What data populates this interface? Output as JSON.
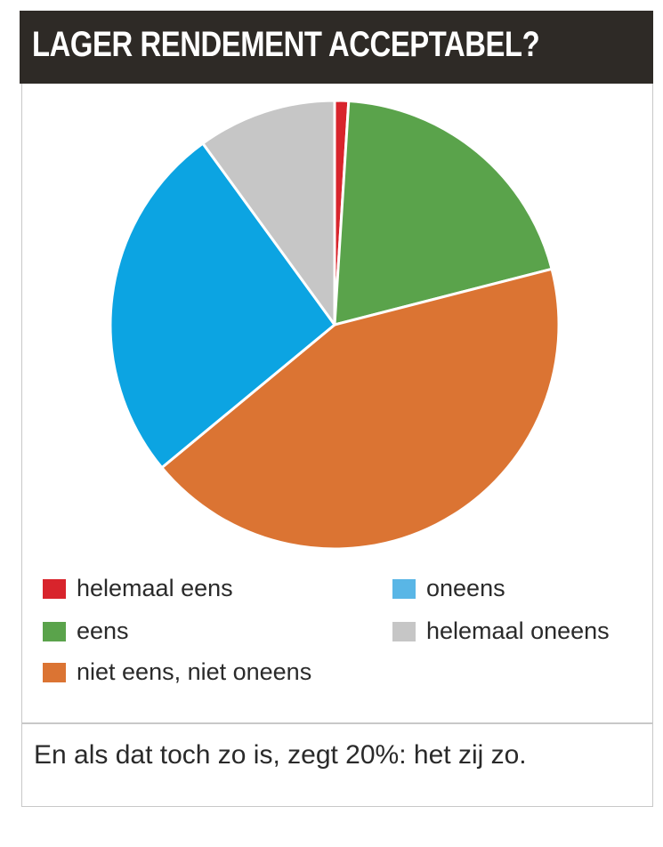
{
  "header": {
    "title": "LAGER RENDEMENT ACCEPTABEL?"
  },
  "chart_data": {
    "type": "pie",
    "title": "LAGER RENDEMENT ACCEPTABEL?",
    "start": "top",
    "direction": "clockwise",
    "slices": [
      {
        "label": "helemaal eens",
        "value": 1,
        "color": "#d8242c"
      },
      {
        "label": "eens",
        "value": 20,
        "color": "#5aa34b"
      },
      {
        "label": "niet eens, niet oneens",
        "value": 43,
        "color": "#db7433"
      },
      {
        "label": "oneens",
        "value": 26,
        "color": "#0ca4e2"
      },
      {
        "label": "helemaal oneens",
        "value": 10,
        "color": "#c6c6c6"
      }
    ]
  },
  "legend": {
    "items": [
      {
        "label": "helemaal eens",
        "color": "#d8242c"
      },
      {
        "label": "eens",
        "color": "#5aa34b"
      },
      {
        "label": "niet eens, niet oneens",
        "color": "#db7433"
      },
      {
        "label": "oneens",
        "color": "#59b6e6"
      },
      {
        "label": "helemaal oneens",
        "color": "#c6c6c6"
      }
    ]
  },
  "footer": {
    "note": "En als dat toch zo is, zegt 20%: het zij zo."
  }
}
